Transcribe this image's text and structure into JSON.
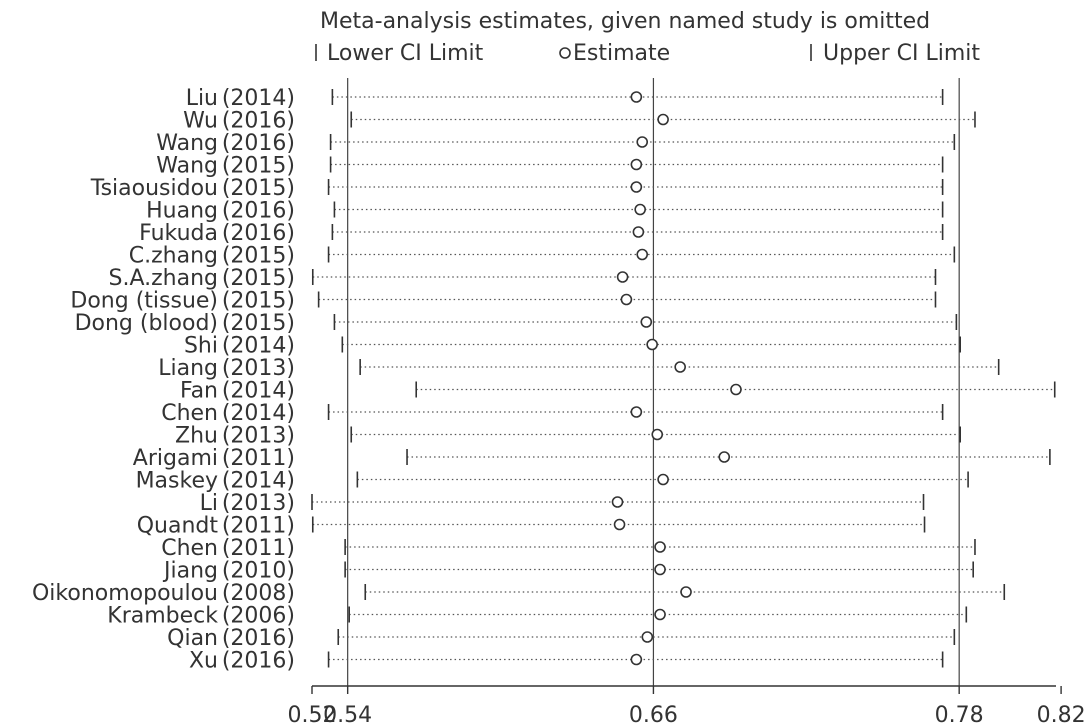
{
  "chart_data": {
    "type": "scatter",
    "chart_kind": "sensitivity-analysis",
    "title": "Meta-analysis estimates, given named study is omitted",
    "legend": {
      "position": "top",
      "lower": "Lower CI Limit",
      "estimate": "Estimate",
      "upper": "Upper CI Limit"
    },
    "x_ticks": [
      {
        "value": 0.526,
        "label": "0.52"
      },
      {
        "value": 0.54,
        "label": "0.54"
      },
      {
        "value": 0.66,
        "label": "0.66"
      },
      {
        "value": 0.78,
        "label": "0.78"
      },
      {
        "value": 0.82,
        "label": "0.82"
      }
    ],
    "xlim": [
      0.526,
      0.818
    ],
    "reference_lines": [
      0.54,
      0.66,
      0.78
    ],
    "studies": [
      {
        "name": "Liu",
        "year": "(2014)",
        "lower": 0.534,
        "estimate": 0.6533,
        "upper": 0.7735
      },
      {
        "name": "Wu",
        "year": "(2016)",
        "lower": 0.5414,
        "estimate": 0.6638,
        "upper": 0.7862
      },
      {
        "name": "Wang",
        "year": "(2016)",
        "lower": 0.5333,
        "estimate": 0.6556,
        "upper": 0.7781
      },
      {
        "name": "Wang",
        "year": "(2015)",
        "lower": 0.5333,
        "estimate": 0.6533,
        "upper": 0.7735
      },
      {
        "name": "Tsiaousidou",
        "year": "(2015)",
        "lower": 0.5325,
        "estimate": 0.6533,
        "upper": 0.7735
      },
      {
        "name": "Huang",
        "year": "(2016)",
        "lower": 0.5348,
        "estimate": 0.6548,
        "upper": 0.7735
      },
      {
        "name": "Fukuda",
        "year": "(2016)",
        "lower": 0.534,
        "estimate": 0.6541,
        "upper": 0.7735
      },
      {
        "name": "C.zhang",
        "year": "(2015)",
        "lower": 0.5325,
        "estimate": 0.6556,
        "upper": 0.7781
      },
      {
        "name": "S.A.zhang",
        "year": "(2015)",
        "lower": 0.5263,
        "estimate": 0.6479,
        "upper": 0.7707
      },
      {
        "name": "Dong (tissue)",
        "year": "(2015)",
        "lower": 0.5286,
        "estimate": 0.6494,
        "upper": 0.7707
      },
      {
        "name": "Dong (blood)",
        "year": "(2015)",
        "lower": 0.5348,
        "estimate": 0.6572,
        "upper": 0.7789
      },
      {
        "name": "Shi",
        "year": "(2014)",
        "lower": 0.5379,
        "estimate": 0.6595,
        "upper": 0.7804
      },
      {
        "name": "Liang",
        "year": "(2013)",
        "lower": 0.5449,
        "estimate": 0.6705,
        "upper": 0.7955
      },
      {
        "name": "Fan",
        "year": "(2014)",
        "lower": 0.5669,
        "estimate": 0.6924,
        "upper": 0.8175
      },
      {
        "name": "Chen",
        "year": "(2014)",
        "lower": 0.5325,
        "estimate": 0.6533,
        "upper": 0.7735
      },
      {
        "name": "Zhu",
        "year": "(2013)",
        "lower": 0.5414,
        "estimate": 0.6615,
        "upper": 0.7804
      },
      {
        "name": "Arigami",
        "year": "(2011)",
        "lower": 0.5633,
        "estimate": 0.6878,
        "upper": 0.8156
      },
      {
        "name": "Maskey",
        "year": "(2014)",
        "lower": 0.5438,
        "estimate": 0.6638,
        "upper": 0.7835
      },
      {
        "name": "Li",
        "year": "(2013)",
        "lower": 0.526,
        "estimate": 0.6459,
        "upper": 0.766
      },
      {
        "name": "Quandt",
        "year": "(2011)",
        "lower": 0.5263,
        "estimate": 0.6467,
        "upper": 0.7664
      },
      {
        "name": "Chen",
        "year": "(2011)",
        "lower": 0.539,
        "estimate": 0.6626,
        "upper": 0.7862
      },
      {
        "name": "Jiang",
        "year": "(2010)",
        "lower": 0.539,
        "estimate": 0.6626,
        "upper": 0.7855
      },
      {
        "name": "Oikonomopoulou",
        "year": "(2008)",
        "lower": 0.5469,
        "estimate": 0.6728,
        "upper": 0.7977
      },
      {
        "name": "Krambeck",
        "year": "(2006)",
        "lower": 0.5406,
        "estimate": 0.6626,
        "upper": 0.7828
      },
      {
        "name": "Qian",
        "year": "(2016)",
        "lower": 0.5363,
        "estimate": 0.6576,
        "upper": 0.7781
      },
      {
        "name": "Xu",
        "year": "(2016)",
        "lower": 0.5325,
        "estimate": 0.6533,
        "upper": 0.7735
      }
    ]
  }
}
